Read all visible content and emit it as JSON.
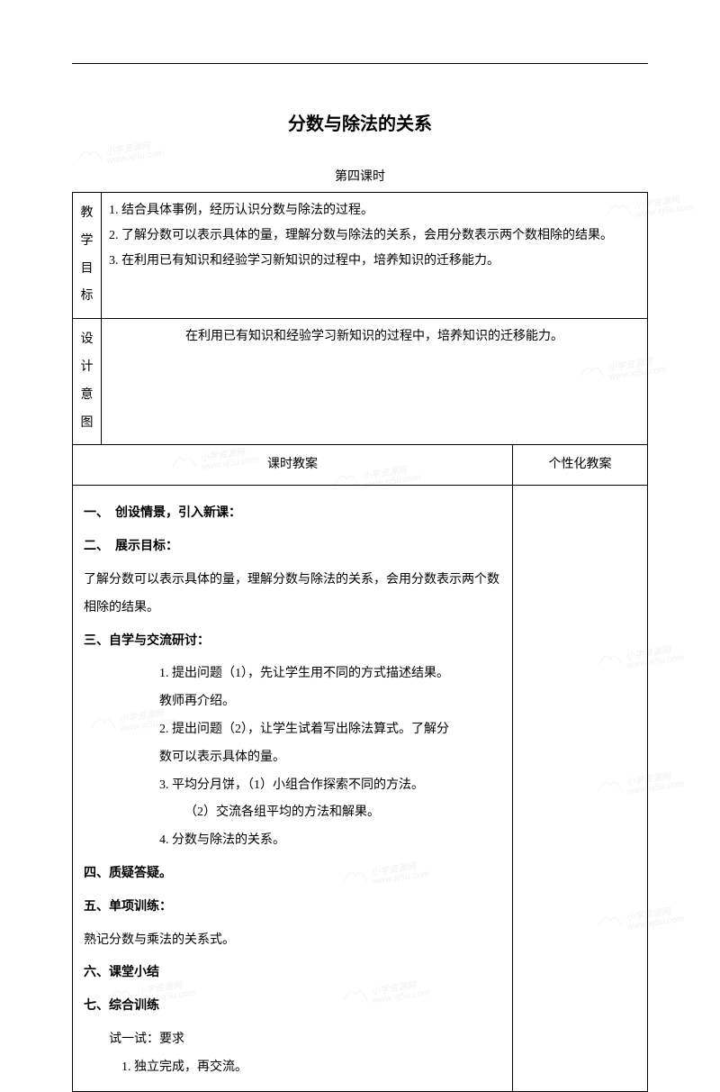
{
  "title": "分数与除法的关系",
  "subtitle": "第四课时",
  "row1": {
    "label": "教学目标",
    "line1": "1. 结合具体事例，经历认识分数与除法的过程。",
    "line2": "2. 了解分数可以表示具体的量，理解分数与除法的关系，会用分数表示两个数相除的结果。",
    "line3": "3. 在利用已有知识和经验学习新知识的过程中，培养知识的迁移能力。"
  },
  "row2": {
    "label": "设计意图",
    "content": "在利用已有知识和经验学习新知识的过程中，培养知识的迁移能力。"
  },
  "header": {
    "left": "课时教案",
    "right": "个性化教案"
  },
  "body": {
    "s1": "一、　创设情景，引入新课：",
    "s2": "二、　展示目标：",
    "s2_text": "了解分数可以表示具体的量，理解分数与除法的关系，会用分数表示两个数相除的结果。",
    "s3": "三、自学与交流研讨：",
    "s3_1": "1. 提出问题（1），先让学生用不同的方式描述结果。",
    "s3_1b": "教师再介绍。",
    "s3_2": "2. 提出问题（2），让学生试着写出除法算式。了解分",
    "s3_2b": "数可以表示具体的量。",
    "s3_3": "3. 平均分月饼，（1）小组合作探索不同的方法。",
    "s3_3b": "（2）交流各组平均的方法和解果。",
    "s3_4": "4. 分数与除法的关系。",
    "s4": "四、质疑答疑。",
    "s5": "五、单项训练：",
    "s5_text": "熟记分数与乘法的关系式。",
    "s6": "六、课堂小结",
    "s7": "七、综合训练",
    "s7_1": "试一试：要求",
    "s7_2": "1. 独立完成，再交流。"
  },
  "watermark_text1": "小学资源网",
  "watermark_text2": "www.xj5u.com"
}
